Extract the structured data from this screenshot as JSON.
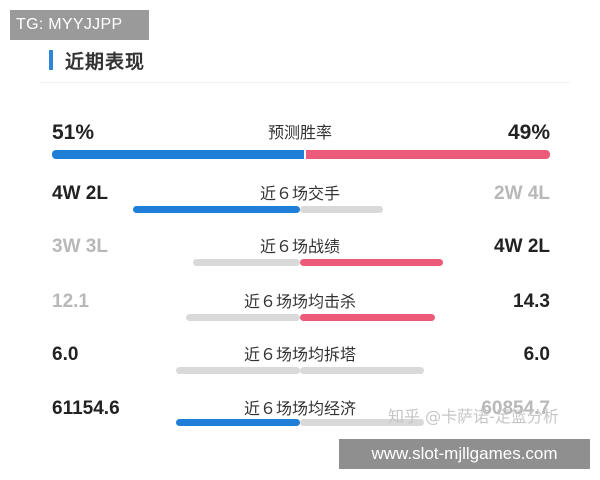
{
  "tg_badge": "TG: MYYJJPP",
  "section_title": "近期表现",
  "colors": {
    "blue": "#1f7fd8",
    "red": "#ec5a79",
    "grey": "#d9d9d9",
    "accent": "#2f86d9"
  },
  "rows": [
    {
      "label": "预测胜率",
      "left": "51%",
      "right": "49%",
      "left_share": 0.51,
      "right_share": 0.49
    },
    {
      "label": "近６场交手",
      "left": "4W 2L",
      "right": "2W 4L",
      "left_share": 0.67,
      "right_share": 0.33
    },
    {
      "label": "近６场战绩",
      "left": "3W 3L",
      "right": "4W 2L",
      "left_share": 0.5,
      "right_share": 0.67
    },
    {
      "label": "近６场场均击杀",
      "left": "12.1",
      "right": "14.3",
      "left_share": 0.46,
      "right_share": 0.54
    },
    {
      "label": "近６场场均拆塔",
      "left": "6.0",
      "right": "6.0",
      "left_share": 0.5,
      "right_share": 0.5
    },
    {
      "label": "近６场场均经济",
      "left": "61154.6",
      "right": "60854.7",
      "left_share": 0.5,
      "right_share": 0.5
    }
  ],
  "watermark": "知乎 @卡萨诺-足篮分析",
  "site_banner": "www.slot-mjllgames.com"
}
